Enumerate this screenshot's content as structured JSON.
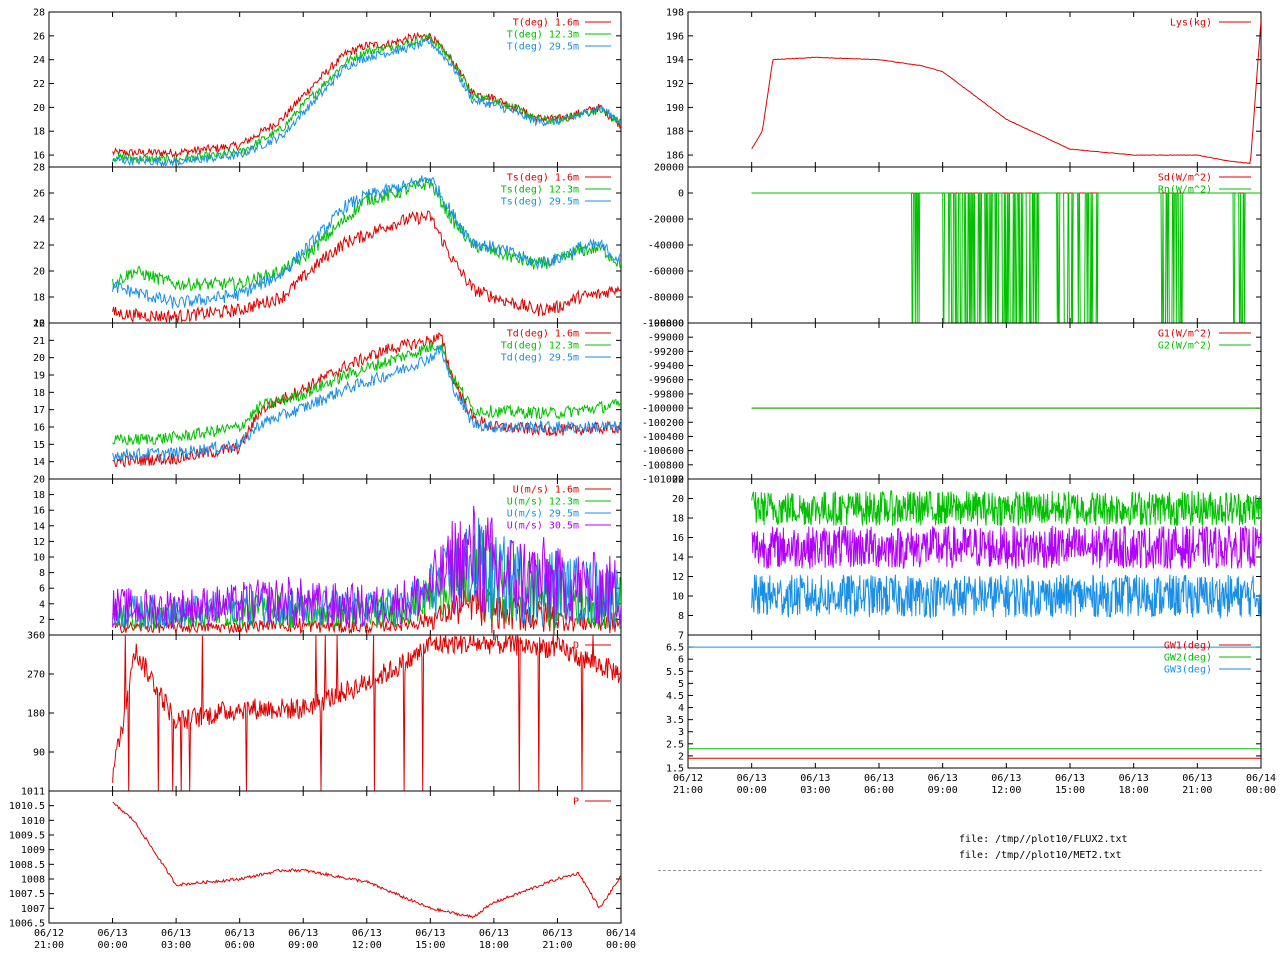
{
  "colors": {
    "red": "#e00000",
    "green": "#00c000",
    "blue": "#1a8fe8",
    "purple": "#b000ff"
  },
  "files": [
    "file: /tmp//plot10/FLUX2.txt",
    "file: /tmp//plot10/MET2.txt"
  ],
  "chart_data": [
    {
      "type": "line",
      "panel_id": "L1",
      "ylim": [
        15,
        28
      ],
      "yticks": [
        "16",
        "18",
        "20",
        "22",
        "24",
        "26",
        "28"
      ],
      "x": [
        "06/13 00:00",
        "06/13 03:00",
        "06/13 06:00",
        "06/13 08:00",
        "06/13 09:00",
        "06/13 10:00",
        "06/13 11:00",
        "06/13 12:00",
        "06/13 13:00",
        "06/13 14:00",
        "06/13 15:00",
        "06/13 16:00",
        "06/13 17:00",
        "06/13 18:00",
        "06/13 19:00",
        "06/13 20:00",
        "06/13 21:00",
        "06/13 22:00",
        "06/13 23:00",
        "06/14 00:00"
      ],
      "series": [
        {
          "name": "T(deg)  1.6m",
          "color": "red",
          "values": [
            16.2,
            16.2,
            16.8,
            19.0,
            21.0,
            22.8,
            24.5,
            25.2,
            25.3,
            25.8,
            26.0,
            24.0,
            21.2,
            20.8,
            20.0,
            19.1,
            19.0,
            19.5,
            20.0,
            18.5
          ]
        },
        {
          "name": "T(deg) 12.3m",
          "color": "green",
          "values": [
            15.8,
            15.6,
            16.2,
            18.2,
            20.2,
            22.0,
            23.8,
            24.7,
            25.0,
            25.4,
            25.9,
            24.0,
            21.0,
            20.6,
            19.9,
            19.0,
            18.9,
            19.4,
            19.8,
            18.7
          ]
        },
        {
          "name": "T(deg) 29.5m",
          "color": "blue",
          "values": [
            15.6,
            15.4,
            16.0,
            17.6,
            19.6,
            21.4,
            23.4,
            24.2,
            24.6,
            25.0,
            25.5,
            23.6,
            20.6,
            20.2,
            19.6,
            18.8,
            18.8,
            19.3,
            20.0,
            18.8
          ]
        }
      ]
    },
    {
      "type": "line",
      "panel_id": "L2",
      "ylim": [
        16,
        28
      ],
      "yticks": [
        "16",
        "18",
        "20",
        "22",
        "24",
        "26",
        "28"
      ],
      "x": [
        "06/13 00:00",
        "06/13 01:00",
        "06/13 03:00",
        "06/13 06:00",
        "06/13 08:00",
        "06/13 09:00",
        "06/13 10:00",
        "06/13 11:00",
        "06/13 12:00",
        "06/13 13:00",
        "06/13 14:00",
        "06/13 15:00",
        "06/13 16:00",
        "06/13 17:00",
        "06/13 18:00",
        "06/13 19:00",
        "06/13 20:00",
        "06/13 21:00",
        "06/13 22:00",
        "06/13 23:00",
        "06/14 00:00"
      ],
      "series": [
        {
          "name": "Ts(deg)  1.6m",
          "color": "red",
          "values": [
            16.8,
            16.6,
            16.5,
            17.0,
            18.0,
            19.5,
            21.0,
            22.2,
            22.8,
            23.5,
            24.0,
            24.2,
            21.0,
            18.6,
            18.0,
            17.5,
            17.0,
            17.2,
            18.0,
            18.2,
            18.8
          ]
        },
        {
          "name": "Ts(deg) 12.3m",
          "color": "green",
          "values": [
            19.0,
            20.0,
            19.0,
            19.0,
            20.0,
            21.0,
            22.5,
            24.0,
            25.5,
            25.8,
            26.3,
            26.8,
            24.0,
            22.0,
            21.5,
            21.0,
            20.5,
            20.8,
            21.5,
            21.8,
            20.5
          ]
        },
        {
          "name": "Ts(deg) 29.5m",
          "color": "blue",
          "values": [
            18.8,
            18.4,
            17.5,
            18.2,
            19.8,
            21.5,
            23.2,
            25.0,
            25.8,
            26.2,
            26.6,
            27.2,
            24.5,
            22.2,
            21.8,
            21.3,
            20.6,
            20.9,
            21.8,
            22.0,
            20.8
          ]
        }
      ]
    },
    {
      "type": "line",
      "panel_id": "L3",
      "ylim": [
        13,
        22
      ],
      "yticks": [
        "14",
        "15",
        "16",
        "17",
        "18",
        "19",
        "20",
        "21",
        "22"
      ],
      "x": [
        "06/13 00:00",
        "06/13 03:00",
        "06/13 06:00",
        "06/13 07:00",
        "06/13 09:00",
        "06/13 11:00",
        "06/13 13:00",
        "06/13 15:00",
        "06/13 15:30",
        "06/13 16:00",
        "06/13 17:00",
        "06/13 18:00",
        "06/13 21:00",
        "06/14 00:00"
      ],
      "series": [
        {
          "name": "Td(deg)  1.6m",
          "color": "red",
          "values": [
            14.0,
            14.2,
            14.8,
            17.0,
            18.2,
            19.5,
            20.5,
            21.0,
            21.2,
            19.0,
            16.5,
            16.0,
            15.8,
            16.0
          ]
        },
        {
          "name": "Td(deg) 12.3m",
          "color": "green",
          "values": [
            15.2,
            15.4,
            16.0,
            17.2,
            17.9,
            19.0,
            19.8,
            20.6,
            20.8,
            19.0,
            17.0,
            16.9,
            16.8,
            17.3
          ]
        },
        {
          "name": "Td(deg) 29.5m",
          "color": "blue",
          "values": [
            14.4,
            14.5,
            15.0,
            16.2,
            17.1,
            18.2,
            19.0,
            20.0,
            20.5,
            18.5,
            16.2,
            16.0,
            16.0,
            16.0
          ]
        }
      ]
    },
    {
      "type": "line",
      "panel_id": "L4",
      "ylim": [
        0,
        20
      ],
      "yticks": [
        "2",
        "4",
        "6",
        "8",
        "10",
        "12",
        "14",
        "16",
        "18",
        "20"
      ],
      "x": [
        "06/13 00:00",
        "06/13 03:00",
        "06/13 06:00",
        "06/13 08:00",
        "06/13 09:00",
        "06/13 12:00",
        "06/13 13:00",
        "06/13 14:00",
        "06/13 15:00",
        "06/13 16:00",
        "06/13 17:00",
        "06/13 18:00",
        "06/13 21:00",
        "06/14 00:00"
      ],
      "series": [
        {
          "name": "U(m/s)  1.6m",
          "color": "red",
          "values": [
            1.0,
            1.0,
            1.0,
            1.5,
            1.2,
            1.0,
            1.2,
            1.5,
            2.0,
            3.0,
            4.0,
            3.0,
            2.0,
            1.5
          ]
        },
        {
          "name": "U(m/s) 12.3m",
          "color": "green",
          "values": [
            2.5,
            2.5,
            3.0,
            3.5,
            3.0,
            2.8,
            3.0,
            3.5,
            5.0,
            7.0,
            8.0,
            6.5,
            5.0,
            4.0
          ]
        },
        {
          "name": "U(m/s) 29.5m",
          "color": "blue",
          "values": [
            3.0,
            3.0,
            3.5,
            4.0,
            3.5,
            3.2,
            3.5,
            4.0,
            5.5,
            8.0,
            9.0,
            7.5,
            6.0,
            5.0
          ]
        },
        {
          "name": "U(m/s) 30.5m",
          "color": "purple",
          "values": [
            3.5,
            3.5,
            4.0,
            4.5,
            4.0,
            3.6,
            4.0,
            4.5,
            6.0,
            9.0,
            10.0,
            8.0,
            6.5,
            5.5
          ]
        }
      ]
    },
    {
      "type": "line",
      "panel_id": "L5",
      "ylim": [
        0,
        360
      ],
      "yticks": [
        "90",
        "180",
        "270",
        "360"
      ],
      "x": [
        "06/13 00:00",
        "06/13 00:30",
        "06/13 01:00",
        "06/13 03:00",
        "06/13 06:00",
        "06/13 09:00",
        "06/13 12:00",
        "06/13 14:00",
        "06/13 15:00",
        "06/13 18:00",
        "06/13 21:00",
        "06/14 00:00"
      ],
      "series": [
        {
          "name": "D",
          "color": "red",
          "values": [
            40,
            160,
            330,
            160,
            190,
            190,
            250,
            300,
            340,
            340,
            330,
            270
          ]
        }
      ]
    },
    {
      "type": "line",
      "panel_id": "L6",
      "ylim": [
        1006.5,
        1011
      ],
      "yticks": [
        "1006.5",
        "1007",
        "1007.5",
        "1008",
        "1008.5",
        "1009",
        "1009.5",
        "1010",
        "1010.5",
        "1011"
      ],
      "x": [
        "06/13 00:00",
        "06/13 01:00",
        "06/13 03:00",
        "06/13 06:00",
        "06/13 08:00",
        "06/13 09:00",
        "06/13 12:00",
        "06/13 15:00",
        "06/13 17:00",
        "06/13 18:00",
        "06/13 21:00",
        "06/13 22:00",
        "06/13 23:00",
        "06/14 00:00"
      ],
      "series": [
        {
          "name": "P",
          "color": "red",
          "values": [
            1010.6,
            1010.0,
            1007.8,
            1008.0,
            1008.3,
            1008.3,
            1007.9,
            1007.0,
            1006.7,
            1007.2,
            1008.0,
            1008.2,
            1007.0,
            1008.1
          ]
        }
      ]
    },
    {
      "type": "line",
      "panel_id": "R1",
      "ylim": [
        185,
        198
      ],
      "yticks": [
        "186",
        "188",
        "190",
        "192",
        "194",
        "196",
        "198"
      ],
      "x": [
        "06/13 00:00",
        "06/13 00:30",
        "06/13 01:00",
        "06/13 03:00",
        "06/13 06:00",
        "06/13 08:00",
        "06/13 09:00",
        "06/13 12:00",
        "06/13 15:00",
        "06/13 18:00",
        "06/13 21:00",
        "06/13 22:30",
        "06/13 23:30",
        "06/14 00:00"
      ],
      "series": [
        {
          "name": "Lys(kg)",
          "color": "red",
          "values": [
            186.5,
            188.0,
            194.0,
            194.2,
            194.0,
            193.5,
            193.0,
            189.0,
            186.5,
            186.0,
            186.0,
            185.5,
            185.3,
            197.3
          ]
        }
      ]
    },
    {
      "type": "line",
      "panel_id": "R2",
      "ylim": [
        -100000,
        20000
      ],
      "yticks": [
        "-100000",
        "-80000",
        "-60000",
        "-40000",
        "-20000",
        "0",
        "20000"
      ],
      "x": [
        "06/13 00:00",
        "06/13 06:00",
        "06/13 09:00",
        "06/13 15:00",
        "06/13 18:00",
        "06/13 21:00",
        "06/14 00:00"
      ],
      "series": [
        {
          "name": "Sd(W/m^2)",
          "color": "red",
          "values": [
            0,
            0,
            0,
            0,
            0,
            0,
            0
          ]
        },
        {
          "name": "Rn(W/m^2)",
          "color": "green",
          "values": [
            0,
            0,
            -100000,
            0,
            -100000,
            0,
            0
          ]
        }
      ]
    },
    {
      "type": "line",
      "panel_id": "R3",
      "ylim": [
        -101000,
        -98800
      ],
      "yticks": [
        "-101000",
        "-100800",
        "-100600",
        "-100400",
        "-100200",
        "-100000",
        "-99800",
        "-99600",
        "-99400",
        "-99200",
        "-99000",
        "-98800"
      ],
      "x": [
        "06/13 00:00",
        "06/14 00:00"
      ],
      "series": [
        {
          "name": "G1(W/m^2)",
          "color": "red",
          "values": [
            -100000,
            -100000
          ]
        },
        {
          "name": "G2(W/m^2)",
          "color": "green",
          "values": [
            -100000,
            -100000
          ]
        }
      ]
    },
    {
      "type": "line",
      "panel_id": "R4",
      "ylim": [
        6,
        22
      ],
      "yticks": [
        "8",
        "10",
        "12",
        "14",
        "16",
        "18",
        "20",
        "22"
      ],
      "x": [
        "06/13 00:00",
        "06/14 00:00"
      ],
      "series": [
        {
          "color": "green",
          "values": [
            19,
            19
          ]
        },
        {
          "color": "purple",
          "values": [
            15,
            15
          ]
        },
        {
          "color": "blue",
          "values": [
            10,
            10
          ]
        }
      ]
    },
    {
      "type": "line",
      "panel_id": "R5",
      "ylim": [
        1.5,
        7
      ],
      "yticks": [
        "1.5",
        "2",
        "2.5",
        "3",
        "3.5",
        "4",
        "4.5",
        "5",
        "5.5",
        "6",
        "6.5",
        "7"
      ],
      "x": [
        "06/12 21:00",
        "06/14 00:00"
      ],
      "series": [
        {
          "name": "GW1(deg)",
          "color": "red",
          "values": [
            1.9,
            1.9
          ]
        },
        {
          "name": "GW2(deg)",
          "color": "green",
          "values": [
            2.3,
            2.3
          ]
        },
        {
          "name": "GW3(deg)",
          "color": "blue",
          "values": [
            6.5,
            6.5
          ]
        }
      ]
    }
  ],
  "xtick_labels": [
    {
      "d": "06/12",
      "t": "21:00"
    },
    {
      "d": "06/13",
      "t": "00:00"
    },
    {
      "d": "06/13",
      "t": "03:00"
    },
    {
      "d": "06/13",
      "t": "06:00"
    },
    {
      "d": "06/13",
      "t": "09:00"
    },
    {
      "d": "06/13",
      "t": "12:00"
    },
    {
      "d": "06/13",
      "t": "15:00"
    },
    {
      "d": "06/13",
      "t": "18:00"
    },
    {
      "d": "06/13",
      "t": "21:00"
    },
    {
      "d": "06/14",
      "t": "00:00"
    }
  ]
}
